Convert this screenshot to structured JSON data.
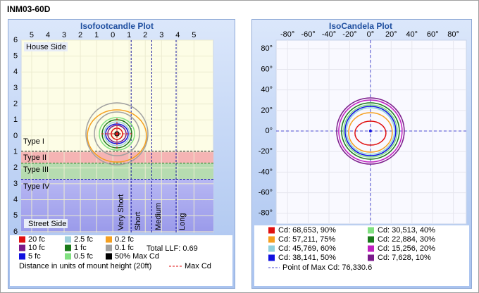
{
  "window": {
    "title": "INM03-60D"
  },
  "isofootcandle_plot": {
    "title": "Isofootcandle Plot",
    "xlim": [
      -5.65,
      6.2
    ],
    "ylim": [
      -6.05,
      6.0
    ],
    "xticks": [
      {
        "value": -5,
        "label": "5"
      },
      {
        "value": -4,
        "label": "4"
      },
      {
        "value": -3,
        "label": "3"
      },
      {
        "value": -2,
        "label": "2"
      },
      {
        "value": -1,
        "label": "1"
      },
      0,
      1,
      2,
      3,
      4,
      5
    ],
    "yticks": [
      6,
      5,
      4,
      3,
      2,
      1,
      0,
      {
        "value": -1,
        "label": "1"
      },
      {
        "value": -2,
        "label": "2"
      },
      {
        "value": -3,
        "label": "3"
      },
      {
        "value": -4,
        "label": "4"
      },
      {
        "value": -5,
        "label": "5"
      },
      {
        "value": -6,
        "label": "6"
      }
    ],
    "house_side": "House Side",
    "street_side": "Street Side",
    "types": [
      "Type I",
      "Type II",
      "Type III",
      "Type IV"
    ],
    "distances": [
      "Very Short",
      "Short",
      "Medium",
      "Long"
    ],
    "legend": [
      {
        "label": "20 fc",
        "color": "#e01010"
      },
      {
        "label": "2.5 fc",
        "color": "#9fd0dc"
      },
      {
        "label": "0.2 fc",
        "color": "#f5a020"
      },
      {
        "label": "10 fc",
        "color": "#7a1a8a"
      },
      {
        "label": "1 fc",
        "color": "#1a7a1a"
      },
      {
        "label": "0.1 fc",
        "color": "#a0a0a0"
      },
      {
        "label": "5 fc",
        "color": "#1010e0"
      },
      {
        "label": "0.5 fc",
        "color": "#80e080"
      },
      {
        "label": "50% Max Cd",
        "color": "#000000"
      }
    ],
    "llf": "Total LLF: 0.69",
    "distance_note": "Distance in units of mount height (20ft)",
    "max_cd": "Max Cd"
  },
  "isocandela_plot": {
    "title": "IsoCandela Plot",
    "xlim": [
      -91,
      92.5
    ],
    "ylim": [
      -90.4,
      88.4
    ],
    "xticks": [
      {
        "value": -80,
        "label": "-80°"
      },
      {
        "value": -60,
        "label": "-60°"
      },
      {
        "value": -40,
        "label": "-40°"
      },
      {
        "value": -20,
        "label": "-20°"
      },
      {
        "value": 0,
        "label": "0°"
      },
      {
        "value": 20,
        "label": "20°"
      },
      {
        "value": 40,
        "label": "40°"
      },
      {
        "value": 60,
        "label": "60°"
      },
      {
        "value": 80,
        "label": "80°"
      }
    ],
    "yticks": [
      {
        "value": 80,
        "label": "80°"
      },
      {
        "value": 60,
        "label": "60°"
      },
      {
        "value": 40,
        "label": "40°"
      },
      {
        "value": 20,
        "label": "20°"
      },
      {
        "value": 0,
        "label": "0°"
      },
      {
        "value": -20,
        "label": "-20°"
      },
      {
        "value": -40,
        "label": "-40°"
      },
      {
        "value": -60,
        "label": "-60°"
      },
      {
        "value": -80,
        "label": "-80°"
      }
    ],
    "legend": [
      {
        "label": "Cd: 68,653, 90%",
        "color": "#e01010"
      },
      {
        "label": "Cd: 30,513, 40%",
        "color": "#80e080"
      },
      {
        "label": "Cd: 57,211, 75%",
        "color": "#f5a020"
      },
      {
        "label": "Cd: 22,884, 30%",
        "color": "#1a7a1a"
      },
      {
        "label": "Cd: 45,769, 60%",
        "color": "#8fd0dc"
      },
      {
        "label": "Cd: 15,256, 20%",
        "color": "#c020c0"
      },
      {
        "label": "Cd: 38,141, 50%",
        "color": "#1010e0"
      },
      {
        "label": "Cd: 7,628, 10%",
        "color": "#7a1a8a"
      }
    ],
    "max_point": "Point of Max Cd: 76,330.6"
  }
}
